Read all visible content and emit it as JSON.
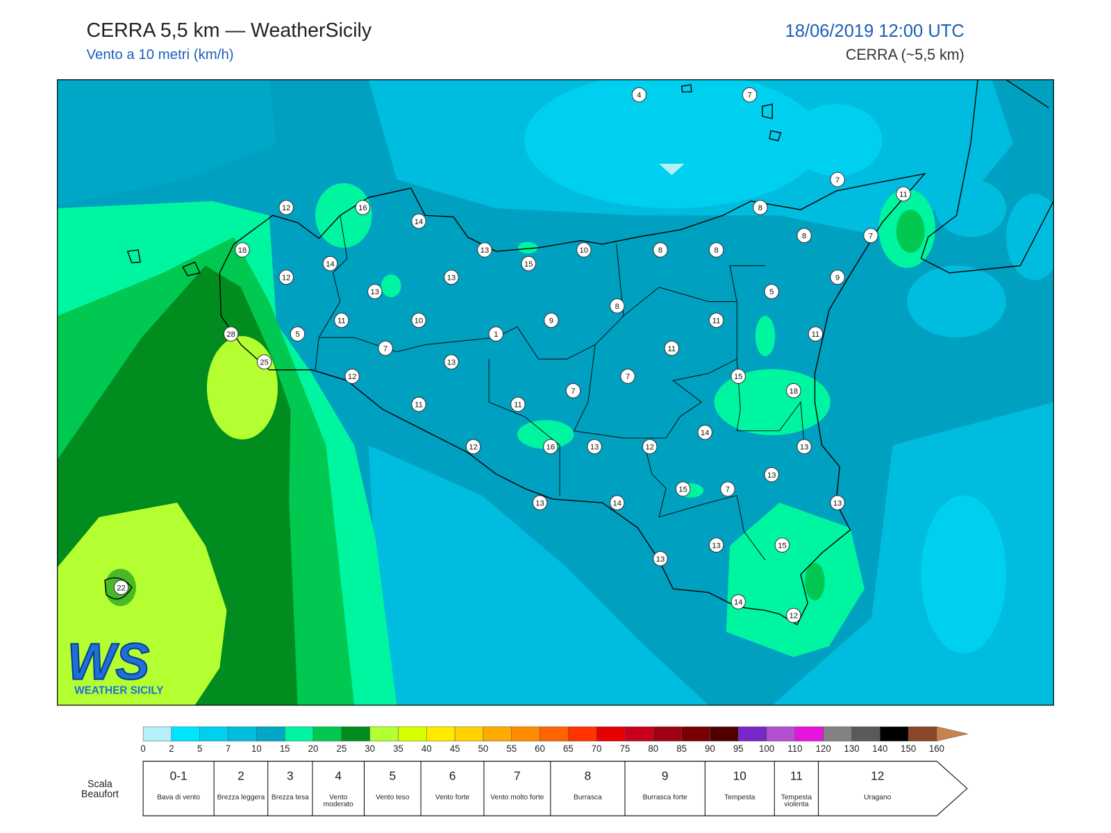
{
  "header": {
    "title": "CERRA 5,5 km — WeatherSicily",
    "subtitle": "Vento a 10 metri (km/h)",
    "datetime": "18/06/2019 12:00 UTC",
    "model": "CERRA (~5,5 km)"
  },
  "map": {
    "stations": [
      4,
      7,
      7,
      11,
      12,
      16,
      14,
      8,
      8,
      7,
      18,
      13,
      10,
      8,
      8,
      14,
      15,
      12,
      13,
      9,
      13,
      5,
      8,
      11,
      10,
      9,
      11,
      5,
      1,
      11,
      28,
      7,
      11,
      25,
      13,
      12,
      7,
      15,
      7,
      18,
      11,
      11,
      14,
      12,
      16,
      13,
      12,
      13,
      13,
      15,
      7,
      13,
      14,
      13,
      13,
      15,
      13,
      22,
      14,
      12
    ]
  },
  "logo": {
    "mark": "WS",
    "name": "WEATHER SICILY"
  },
  "colorbar": {
    "ticks": [
      0,
      2,
      5,
      7,
      10,
      15,
      20,
      25,
      30,
      35,
      40,
      45,
      50,
      55,
      60,
      65,
      70,
      75,
      80,
      85,
      90,
      95,
      100,
      110,
      120,
      130,
      140,
      150,
      160
    ],
    "colors": [
      "#b3f0fa",
      "#00e5ff",
      "#00d0f0",
      "#00bde0",
      "#00a8c8",
      "#00f5a0",
      "#00c850",
      "#008c1e",
      "#b4ff32",
      "#d7ff00",
      "#ffeb00",
      "#ffd200",
      "#ffaa00",
      "#ff8c00",
      "#ff6400",
      "#ff3200",
      "#e60000",
      "#c8001e",
      "#a00014",
      "#780000",
      "#500000",
      "#7828c8",
      "#b450d2",
      "#e614dc",
      "#828282",
      "#5a5a5a",
      "#000000",
      "#8c4628",
      "#c8824b"
    ]
  },
  "beaufort": {
    "title": "Scala Beaufort",
    "levels": [
      {
        "force": "0-1",
        "label": "Bava di vento"
      },
      {
        "force": 2,
        "label": "Brezza leggera"
      },
      {
        "force": 3,
        "label": "Brezza tesa"
      },
      {
        "force": 4,
        "label": "Vento moderato"
      },
      {
        "force": 5,
        "label": "Vento teso"
      },
      {
        "force": 6,
        "label": "Vento forte"
      },
      {
        "force": 7,
        "label": "Vento molto forte"
      },
      {
        "force": 8,
        "label": "Burrasca"
      },
      {
        "force": 9,
        "label": "Burrasca forte"
      },
      {
        "force": 10,
        "label": "Tempesta"
      },
      {
        "force": 11,
        "label": "Tempesta violenta"
      },
      {
        "force": 12,
        "label": "Uragano"
      }
    ]
  }
}
